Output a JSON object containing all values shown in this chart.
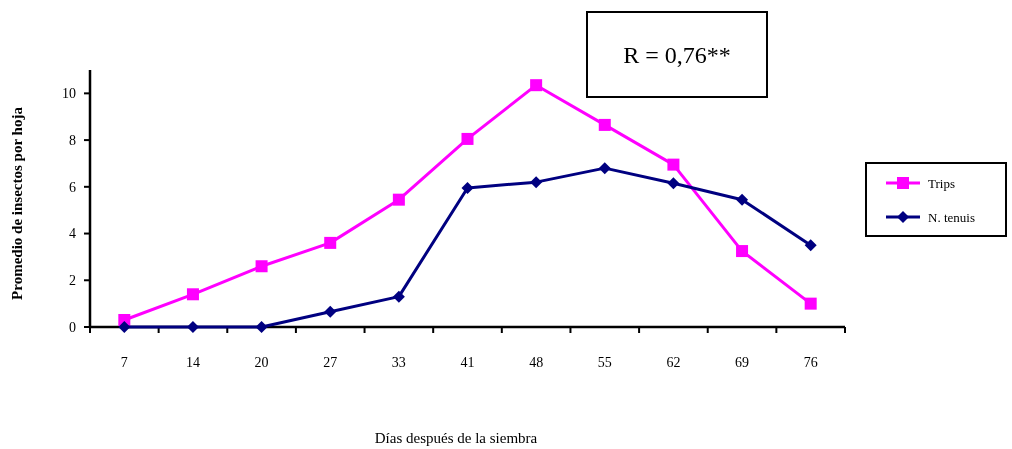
{
  "chart_data": {
    "type": "line",
    "xlabel": "Días después de la siembra",
    "ylabel": "Promedio de insectos por hoja",
    "annotations": [
      "R = 0,76**"
    ],
    "categories": [
      "7",
      "14",
      "20",
      "27",
      "33",
      "41",
      "48",
      "55",
      "62",
      "69",
      "76"
    ],
    "ylim": [
      0,
      11
    ],
    "yticks": [
      0,
      2,
      4,
      6,
      8,
      10
    ],
    "grid": false,
    "legend": "right",
    "series": [
      {
        "name": "Trips",
        "color": "#ff00ff",
        "marker": "square",
        "values": [
          0.3,
          1.4,
          2.6,
          3.6,
          5.45,
          8.05,
          10.35,
          8.65,
          6.95,
          3.25,
          1.0
        ]
      },
      {
        "name": "N. tenuis",
        "color": "#000080",
        "marker": "diamond",
        "values": [
          0,
          0,
          0,
          0.65,
          1.3,
          5.95,
          6.2,
          6.8,
          6.15,
          5.45,
          3.5
        ]
      }
    ]
  }
}
